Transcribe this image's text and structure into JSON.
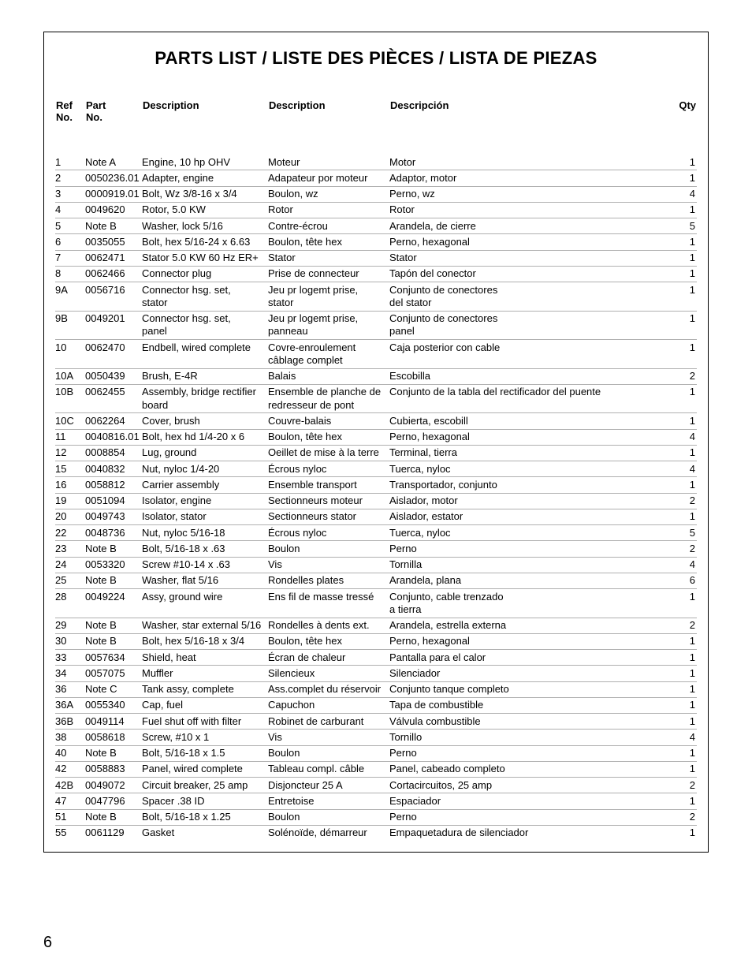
{
  "title": "PARTS LIST / LISTE DES PIÈCES / LISTA DE PIEZAS",
  "page_number": "6",
  "columns": {
    "ref": "Ref\nNo.",
    "part": "Part\nNo.",
    "d1": "Description",
    "d2": "Description",
    "d3": "Descripción",
    "qty": "Qty"
  },
  "rows": [
    {
      "ref": "1",
      "part": "Note A",
      "d1": "Engine, 10 hp OHV",
      "d2": "Moteur",
      "d3": "Motor",
      "qty": "1"
    },
    {
      "ref": "2",
      "part": "0050236.01",
      "d1": "Adapter, engine",
      "d2": "Adapateur por moteur",
      "d3": "Adaptor, motor",
      "qty": "1"
    },
    {
      "ref": "3",
      "part": "0000919.01",
      "d1": "Bolt, Wz 3/8-16 x 3/4",
      "d2": "Boulon, wz",
      "d3": "Perno, wz",
      "qty": "4"
    },
    {
      "ref": "4",
      "part": "0049620",
      "d1": "Rotor, 5.0 KW",
      "d2": "Rotor",
      "d3": "Rotor",
      "qty": "1"
    },
    {
      "ref": "5",
      "part": "Note B",
      "d1": "Washer, lock 5/16",
      "d2": "Contre-écrou",
      "d3": "Arandela, de cierre",
      "qty": "5"
    },
    {
      "ref": "6",
      "part": "0035055",
      "d1": "Bolt, hex 5/16-24 x 6.63",
      "d2": "Boulon, tête hex",
      "d3": "Perno, hexagonal",
      "qty": "1"
    },
    {
      "ref": "7",
      "part": "0062471",
      "d1": "Stator 5.0 KW 60 Hz ER+",
      "d2": "Stator",
      "d3": "Stator",
      "qty": "1"
    },
    {
      "ref": "8",
      "part": "0062466",
      "d1": "Connector plug",
      "d2": "Prise de connecteur",
      "d3": "Tapón del conector",
      "qty": "1"
    },
    {
      "ref": "9A",
      "part": "0056716",
      "d1": "Connector hsg. set,\nstator",
      "d2": "Jeu pr logemt prise,\nstator",
      "d3": "Conjunto de conectores\ndel stator",
      "qty": "1"
    },
    {
      "ref": "9B",
      "part": "0049201",
      "d1": "Connector hsg. set,\npanel",
      "d2": "Jeu pr logemt prise,\npanneau",
      "d3": "Conjunto de conectores\npanel",
      "qty": "1"
    },
    {
      "ref": "10",
      "part": "0062470",
      "d1": "Endbell, wired complete",
      "d2": "Covre-enroulement\ncâblage complet",
      "d3": "Caja posterior con cable",
      "qty": "1"
    },
    {
      "ref": "10A",
      "part": "0050439",
      "d1": "Brush, E-4R",
      "d2": "Balais",
      "d3": "Escobilla",
      "qty": "2"
    },
    {
      "ref": "10B",
      "part": "0062455",
      "d1": "Assembly, bridge rectifier\nboard",
      "d2": "Ensemble de planche de\nredresseur de pont",
      "d3": "Conjunto de la tabla del rectificador del puente",
      "qty": "1"
    },
    {
      "ref": "10C",
      "part": "0062264",
      "d1": "Cover, brush",
      "d2": "Couvre-balais",
      "d3": "Cubierta, escobill",
      "qty": "1"
    },
    {
      "ref": "11",
      "part": "0040816.01",
      "d1": "Bolt, hex hd 1/4-20 x 6",
      "d2": "Boulon, tête hex",
      "d3": "Perno, hexagonal",
      "qty": "4"
    },
    {
      "ref": "12",
      "part": "0008854",
      "d1": "Lug, ground",
      "d2": "Oeillet de mise à la terre",
      "d3": "Terminal, tierra",
      "qty": "1"
    },
    {
      "ref": "15",
      "part": "0040832",
      "d1": "Nut, nyloc 1/4-20",
      "d2": "Écrous nyloc",
      "d3": "Tuerca, nyloc",
      "qty": "4"
    },
    {
      "ref": "16",
      "part": "0058812",
      "d1": "Carrier assembly",
      "d2": "Ensemble transport",
      "d3": "Transportador, conjunto",
      "qty": "1"
    },
    {
      "ref": "19",
      "part": "0051094",
      "d1": "Isolator, engine",
      "d2": "Sectionneurs moteur",
      "d3": "Aislador, motor",
      "qty": "2"
    },
    {
      "ref": "20",
      "part": "0049743",
      "d1": "Isolator, stator",
      "d2": "Sectionneurs stator",
      "d3": "Aislador, estator",
      "qty": "1"
    },
    {
      "ref": "22",
      "part": "0048736",
      "d1": "Nut, nyloc 5/16-18",
      "d2": "Écrous nyloc",
      "d3": "Tuerca, nyloc",
      "qty": "5"
    },
    {
      "ref": "23",
      "part": "Note B",
      "d1": "Bolt, 5/16-18 x .63",
      "d2": "Boulon",
      "d3": "Perno",
      "qty": "2"
    },
    {
      "ref": "24",
      "part": "0053320",
      "d1": "Screw #10-14 x .63",
      "d2": "Vis",
      "d3": "Tornilla",
      "qty": "4"
    },
    {
      "ref": "25",
      "part": "Note B",
      "d1": "Washer, flat 5/16",
      "d2": "Rondelles plates",
      "d3": "Arandela, plana",
      "qty": "6"
    },
    {
      "ref": "28",
      "part": "0049224",
      "d1": "Assy, ground wire",
      "d2": "Ens fil de masse tressé",
      "d3": "Conjunto, cable trenzado\na tierra",
      "qty": "1"
    },
    {
      "ref": "29",
      "part": "Note B",
      "d1": "Washer, star external 5/16",
      "d2": "Rondelles à dents ext.",
      "d3": "Arandela, estrella externa",
      "qty": "2"
    },
    {
      "ref": "30",
      "part": "Note B",
      "d1": "Bolt, hex 5/16-18 x 3/4",
      "d2": "Boulon, tête hex",
      "d3": "Perno, hexagonal",
      "qty": "1"
    },
    {
      "ref": "33",
      "part": "0057634",
      "d1": "Shield, heat",
      "d2": "Écran de chaleur",
      "d3": "Pantalla para el calor",
      "qty": "1"
    },
    {
      "ref": "34",
      "part": "0057075",
      "d1": "Muffler",
      "d2": "Silencieux",
      "d3": "Silenciador",
      "qty": "1"
    },
    {
      "ref": "36",
      "part": "Note C",
      "d1": "Tank assy, complete",
      "d2": "Ass.complet du réservoir",
      "d3": "Conjunto tanque completo",
      "qty": "1"
    },
    {
      "ref": "36A",
      "part": "0055340",
      "d1": "Cap, fuel",
      "d2": "Capuchon",
      "d3": "Tapa de combustible",
      "qty": "1"
    },
    {
      "ref": "36B",
      "part": "0049114",
      "d1": "Fuel shut off with filter",
      "d2": "Robinet de carburant",
      "d3": "Válvula combustible",
      "qty": "1"
    },
    {
      "ref": "38",
      "part": "0058618",
      "d1": "Screw, #10 x 1",
      "d2": "Vis",
      "d3": "Tornillo",
      "qty": "4"
    },
    {
      "ref": "40",
      "part": "Note B",
      "d1": "Bolt, 5/16-18 x 1.5",
      "d2": "Boulon",
      "d3": "Perno",
      "qty": "1"
    },
    {
      "ref": "42",
      "part": "0058883",
      "d1": "Panel, wired complete",
      "d2": "Tableau compl. câble",
      "d3": "Panel, cabeado completo",
      "qty": "1"
    },
    {
      "ref": "42B",
      "part": "0049072",
      "d1": "Circuit breaker, 25 amp",
      "d2": "Disjoncteur 25 A",
      "d3": "Cortacircuitos, 25 amp",
      "qty": "2"
    },
    {
      "ref": "47",
      "part": "0047796",
      "d1": "Spacer .38 ID",
      "d2": "Entretoise",
      "d3": "Espaciador",
      "qty": "1"
    },
    {
      "ref": "51",
      "part": "Note B",
      "d1": "Bolt, 5/16-18 x 1.25",
      "d2": "Boulon",
      "d3": "Perno",
      "qty": "2"
    },
    {
      "ref": "55",
      "part": "0061129",
      "d1": "Gasket",
      "d2": "Solénoïde, démarreur",
      "d3": "Empaquetadura de silenciador",
      "qty": "1"
    }
  ]
}
